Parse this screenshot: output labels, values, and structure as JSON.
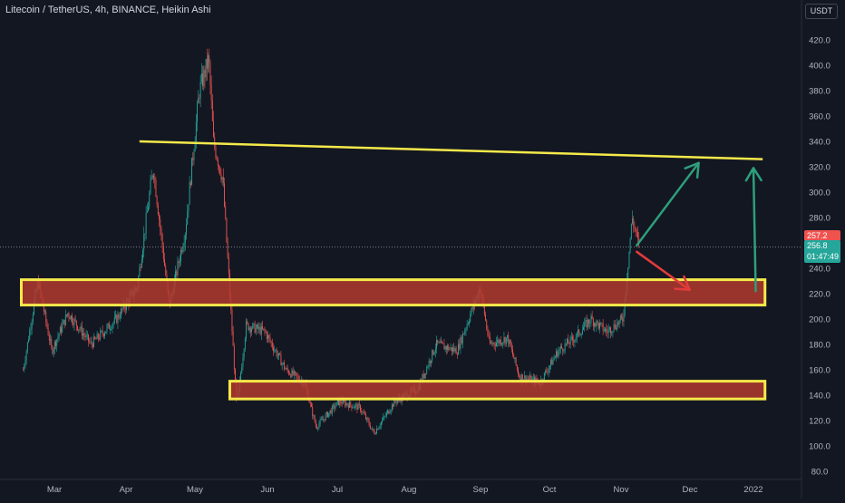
{
  "header": {
    "title": "Litecoin / TetherUS, 4h, BINANCE, Heikin Ashi",
    "currency": "USDT"
  },
  "price_tags": {
    "last_close": "257.2",
    "current": "256.8",
    "countdown": "01:47:49"
  },
  "colors": {
    "background": "#131722",
    "up": "#26a69a",
    "down": "#ef5350",
    "zone_fill": "#b23a2e",
    "zone_border": "#f5e94a",
    "resistance_line": "#f5e94a",
    "arrow_up": "#2e9e7b",
    "arrow_down": "#e23b3b"
  },
  "chart_data": {
    "type": "candlestick",
    "y_ticks": [
      "80.0",
      "100.0",
      "120.0",
      "140.0",
      "160.0",
      "180.0",
      "200.0",
      "220.0",
      "240.0",
      "260.0",
      "280.0",
      "300.0",
      "320.0",
      "340.0",
      "360.0",
      "380.0",
      "400.0",
      "420.0"
    ],
    "ylim": [
      75,
      440
    ],
    "x_ticks": [
      "Mar",
      "Apr",
      "May",
      "Jun",
      "Jul",
      "Aug",
      "Sep",
      "Oct",
      "Nov",
      "Dec",
      "2022"
    ],
    "grid": false,
    "price_path": [
      {
        "t": "2021-02-16",
        "p": 160
      },
      {
        "t": "2021-02-24",
        "p": 230
      },
      {
        "t": "2021-03-03",
        "p": 175
      },
      {
        "t": "2021-03-10",
        "p": 205
      },
      {
        "t": "2021-03-20",
        "p": 180
      },
      {
        "t": "2021-03-31",
        "p": 200
      },
      {
        "t": "2021-04-09",
        "p": 225
      },
      {
        "t": "2021-04-16",
        "p": 320
      },
      {
        "t": "2021-04-23",
        "p": 210
      },
      {
        "t": "2021-04-30",
        "p": 270
      },
      {
        "t": "2021-05-06",
        "p": 380
      },
      {
        "t": "2021-05-10",
        "p": 405
      },
      {
        "t": "2021-05-12",
        "p": 340
      },
      {
        "t": "2021-05-16",
        "p": 310
      },
      {
        "t": "2021-05-19",
        "p": 220
      },
      {
        "t": "2021-05-22",
        "p": 130
      },
      {
        "t": "2021-05-26",
        "p": 195
      },
      {
        "t": "2021-06-03",
        "p": 190
      },
      {
        "t": "2021-06-12",
        "p": 160
      },
      {
        "t": "2021-06-20",
        "p": 150
      },
      {
        "t": "2021-06-25",
        "p": 115
      },
      {
        "t": "2021-07-05",
        "p": 135
      },
      {
        "t": "2021-07-14",
        "p": 130
      },
      {
        "t": "2021-07-20",
        "p": 110
      },
      {
        "t": "2021-07-29",
        "p": 135
      },
      {
        "t": "2021-08-08",
        "p": 145
      },
      {
        "t": "2021-08-16",
        "p": 180
      },
      {
        "t": "2021-08-25",
        "p": 175
      },
      {
        "t": "2021-09-04",
        "p": 225
      },
      {
        "t": "2021-09-08",
        "p": 180
      },
      {
        "t": "2021-09-16",
        "p": 185
      },
      {
        "t": "2021-09-21",
        "p": 155
      },
      {
        "t": "2021-09-30",
        "p": 150
      },
      {
        "t": "2021-10-08",
        "p": 175
      },
      {
        "t": "2021-10-15",
        "p": 185
      },
      {
        "t": "2021-10-22",
        "p": 200
      },
      {
        "t": "2021-10-29",
        "p": 190
      },
      {
        "t": "2021-11-05",
        "p": 200
      },
      {
        "t": "2021-11-09",
        "p": 280
      },
      {
        "t": "2021-11-12",
        "p": 257
      }
    ],
    "annotations": {
      "resistance_line": {
        "from": {
          "t": "2021-04-10",
          "p": 340
        },
        "to": {
          "t": "2022-01-05",
          "p": 326
        }
      },
      "zones": [
        {
          "from": "2021-02-15",
          "to": "2022-01-06",
          "low": 211,
          "high": 231
        },
        {
          "from": "2021-05-19",
          "to": "2022-01-06",
          "low": 137,
          "high": 151
        }
      ],
      "arrows": [
        {
          "color": "up",
          "from": {
            "t": "2021-11-11",
            "p": 258
          },
          "to": {
            "t": "2021-12-08",
            "p": 323
          }
        },
        {
          "color": "down",
          "from": {
            "t": "2021-11-11",
            "p": 253
          },
          "to": {
            "t": "2021-12-04",
            "p": 223
          }
        },
        {
          "color": "up",
          "from": {
            "t": "2022-01-02",
            "p": 222
          },
          "to": {
            "t": "2022-01-01",
            "p": 319
          }
        }
      ]
    }
  }
}
